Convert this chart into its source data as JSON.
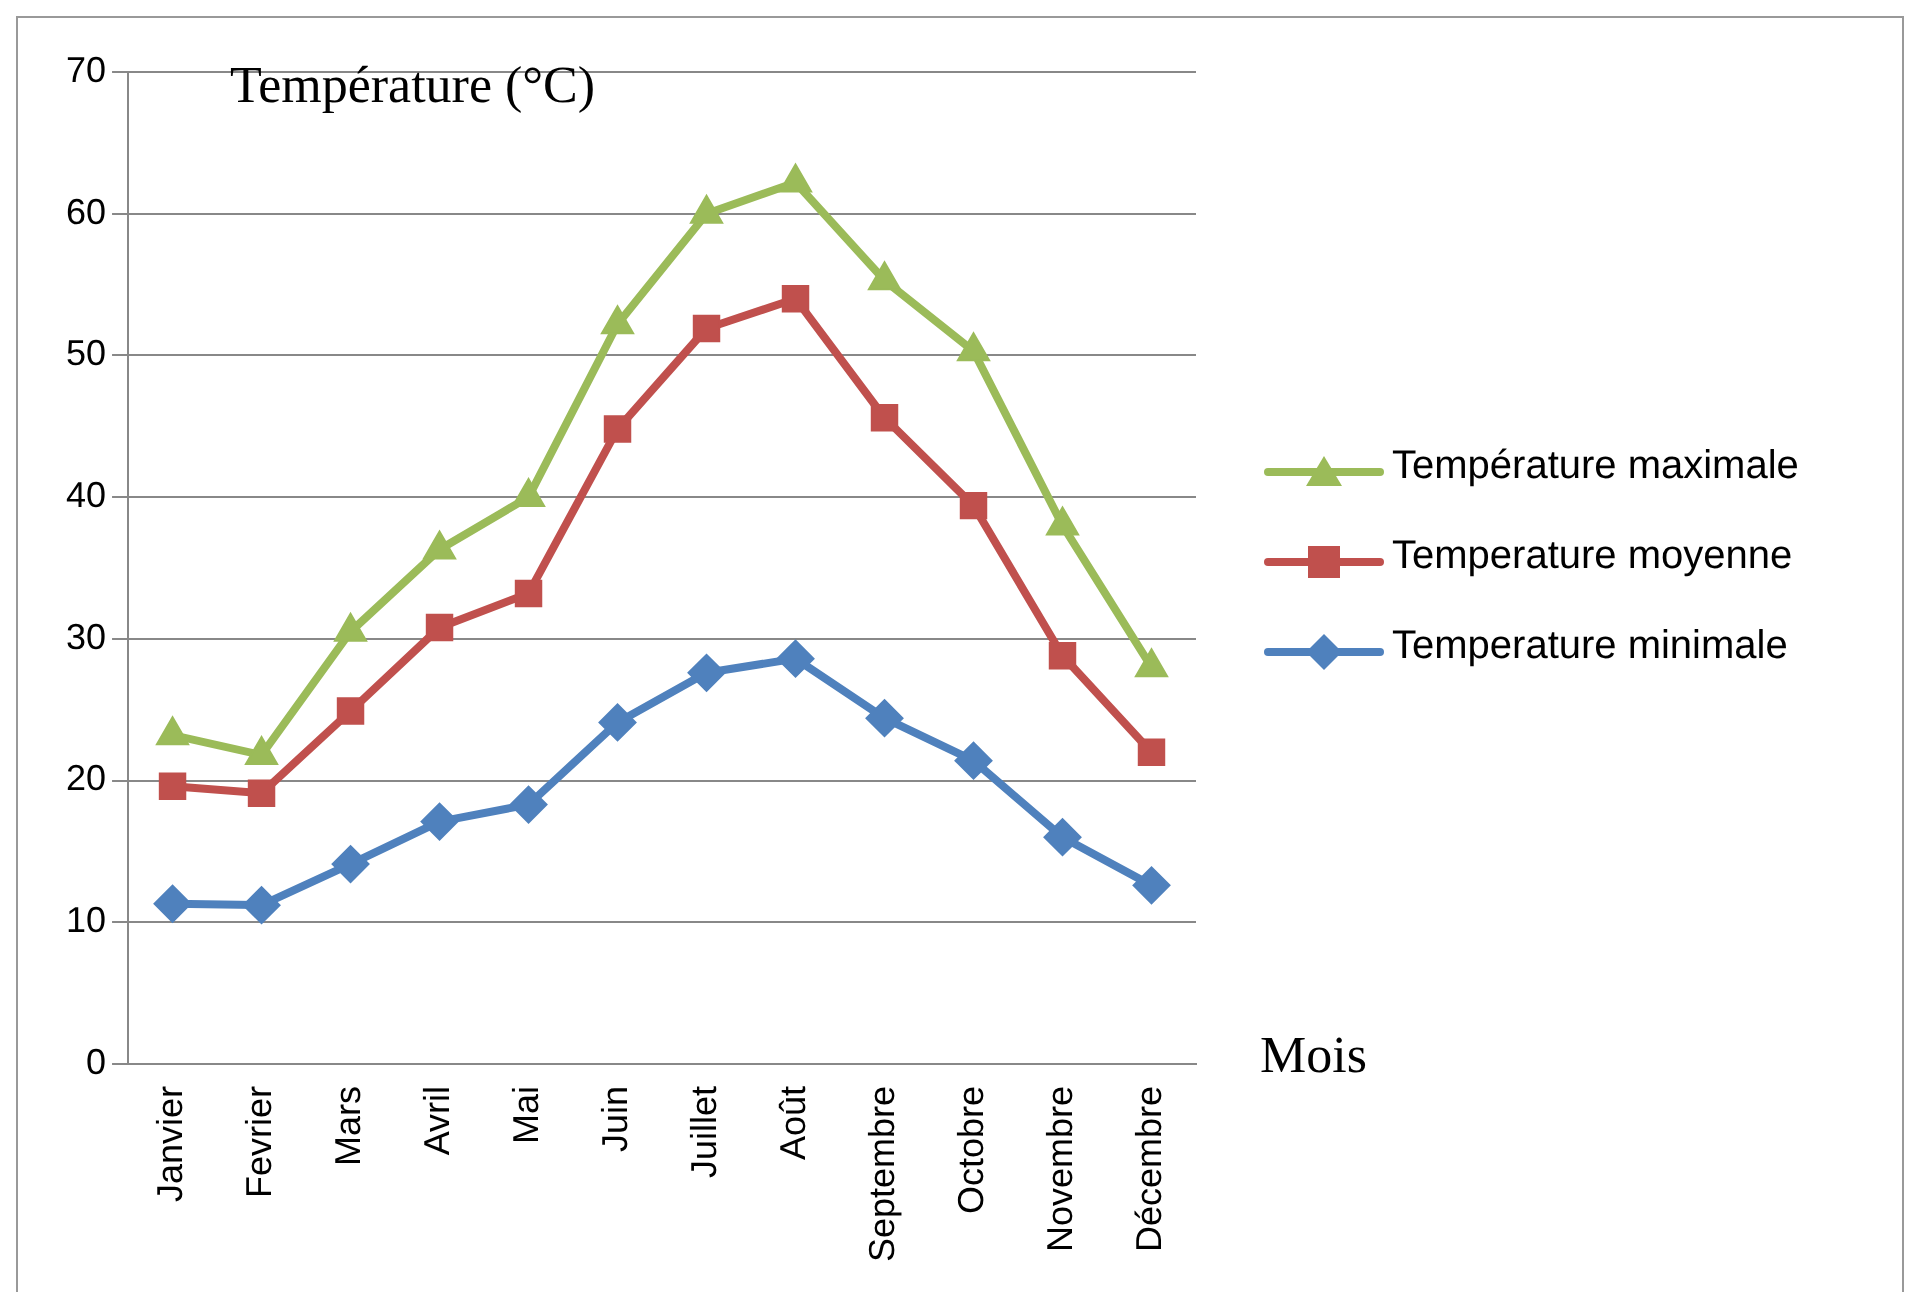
{
  "chart_data": {
    "type": "line",
    "title": "Température (°C)",
    "xlabel": "Mois",
    "categories": [
      "Janvier",
      "Fevrier",
      "Mars",
      "Avril",
      "Mai",
      "Juin",
      "Juillet",
      "Août",
      "Septembre",
      "Octobre",
      "Novembre",
      "Décembre"
    ],
    "series": [
      {
        "name": "Température maximale",
        "color": "#9bbb59",
        "marker": "triangle",
        "values": [
          23.2,
          21.8,
          30.5,
          36.3,
          40,
          52.2,
          60,
          62.2,
          55.3,
          50.3,
          38,
          28
        ]
      },
      {
        "name": "Temperature moyenne",
        "color": "#c0504d",
        "marker": "square",
        "values": [
          19.6,
          19.1,
          24.9,
          30.8,
          33.2,
          44.8,
          51.9,
          54,
          45.6,
          39.4,
          28.8,
          22
        ]
      },
      {
        "name": "Temperature minimale",
        "color": "#4f81bd",
        "marker": "diamond",
        "values": [
          11.3,
          11.2,
          14.1,
          17.1,
          18.3,
          24.1,
          27.6,
          28.6,
          24.4,
          21.4,
          16,
          12.6
        ]
      }
    ],
    "ylim": [
      0,
      70
    ],
    "yticks": [
      0,
      10,
      20,
      30,
      40,
      50,
      60,
      70
    ],
    "grid": "y",
    "legend": "right"
  }
}
